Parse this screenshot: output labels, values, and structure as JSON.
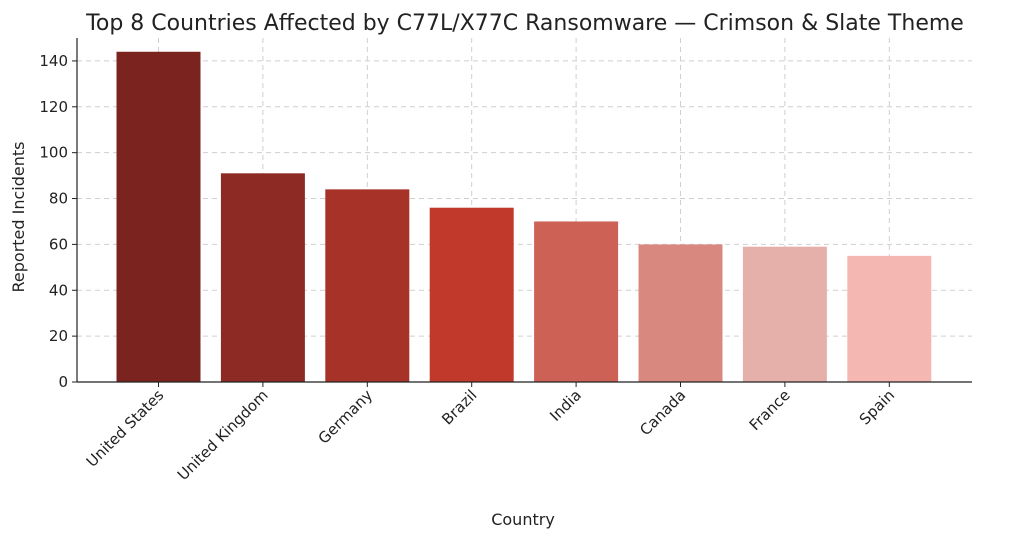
{
  "chart_data": {
    "type": "bar",
    "title": "Top 8 Countries Affected by C77L/X77C Ransomware — Crimson & Slate Theme",
    "xlabel": "Country",
    "ylabel": "Reported Incidents",
    "categories": [
      "United States",
      "United Kingdom",
      "Germany",
      "Brazil",
      "India",
      "Canada",
      "France",
      "Spain"
    ],
    "values": [
      144,
      91,
      84,
      76,
      70,
      60,
      59,
      55
    ],
    "colors": [
      "#7b231e",
      "#8e2a24",
      "#a63228",
      "#c0392b",
      "#cd6155",
      "#d98880",
      "#e6b0aa",
      "#f5b7b1"
    ],
    "ylim": [
      0,
      150
    ],
    "yticks": [
      0,
      20,
      40,
      60,
      80,
      100,
      120,
      140
    ],
    "grid": true,
    "legend": "none"
  }
}
